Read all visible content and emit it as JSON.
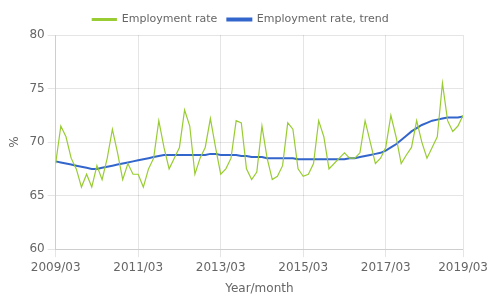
{
  "chart_data": {
    "type": "line",
    "xlabel": "Year/month",
    "ylabel": "%",
    "categories": [
      "2009/03",
      null,
      null,
      null,
      null,
      null,
      null,
      null,
      null,
      null,
      null,
      null,
      null,
      null,
      null,
      null,
      "2011/03",
      null,
      null,
      null,
      null,
      null,
      null,
      null,
      null,
      null,
      null,
      null,
      null,
      null,
      null,
      null,
      "2013/03",
      null,
      null,
      null,
      null,
      null,
      null,
      null,
      null,
      null,
      null,
      null,
      null,
      null,
      null,
      null,
      "2015/03",
      null,
      null,
      null,
      null,
      null,
      null,
      null,
      null,
      null,
      null,
      null,
      null,
      null,
      null,
      null,
      "2017/03",
      null,
      null,
      null,
      null,
      null,
      null,
      null,
      null,
      null,
      null,
      null,
      null,
      null,
      null,
      "2019/03"
    ],
    "series": [
      {
        "name": "Employment rate",
        "color": "#99cc33",
        "values": [
          68.0,
          71.5,
          70.5,
          68.5,
          67.5,
          65.8,
          67.0,
          65.8,
          67.8,
          66.5,
          68.5,
          71.2,
          69.0,
          66.5,
          68.0,
          67.0,
          67.0,
          65.8,
          67.5,
          68.5,
          72.0,
          69.5,
          67.5,
          68.5,
          69.5,
          73.0,
          71.5,
          67.0,
          68.5,
          69.5,
          72.2,
          69.5,
          67.0,
          67.5,
          68.5,
          72.0,
          71.8,
          67.5,
          66.5,
          67.2,
          71.5,
          68.5,
          66.5,
          66.8,
          67.8,
          71.8,
          71.2,
          67.5,
          66.8,
          67.0,
          68.0,
          72.0,
          70.5,
          67.5,
          68.0,
          68.5,
          69.0,
          68.5,
          68.5,
          69.0,
          72.0,
          70.0,
          68.0,
          68.5,
          69.5,
          72.5,
          70.5,
          68.0,
          68.8,
          69.5,
          72.0,
          70.0,
          68.5,
          69.5,
          70.5,
          75.5,
          72.0,
          71.0,
          71.5,
          72.5
        ]
      },
      {
        "name": "Employment rate, trend",
        "color": "#3366cc",
        "values": [
          68.2,
          68.1,
          68.0,
          67.9,
          67.8,
          67.7,
          67.6,
          67.5,
          67.5,
          67.6,
          67.7,
          67.8,
          67.9,
          68.0,
          68.1,
          68.2,
          68.3,
          68.4,
          68.5,
          68.6,
          68.7,
          68.8,
          68.8,
          68.8,
          68.8,
          68.8,
          68.8,
          68.8,
          68.8,
          68.8,
          68.9,
          68.9,
          68.8,
          68.8,
          68.8,
          68.8,
          68.7,
          68.7,
          68.6,
          68.6,
          68.6,
          68.5,
          68.5,
          68.5,
          68.5,
          68.5,
          68.5,
          68.4,
          68.4,
          68.4,
          68.4,
          68.4,
          68.4,
          68.4,
          68.4,
          68.4,
          68.4,
          68.5,
          68.5,
          68.6,
          68.7,
          68.8,
          68.9,
          69.0,
          69.2,
          69.5,
          69.8,
          70.2,
          70.6,
          71.0,
          71.3,
          71.6,
          71.8,
          72.0,
          72.1,
          72.2,
          72.3,
          72.3,
          72.3,
          72.4
        ]
      }
    ],
    "ylim": [
      60,
      80
    ],
    "yticks": [
      60,
      65,
      70,
      75,
      80
    ],
    "grid": true,
    "legend": "top"
  }
}
